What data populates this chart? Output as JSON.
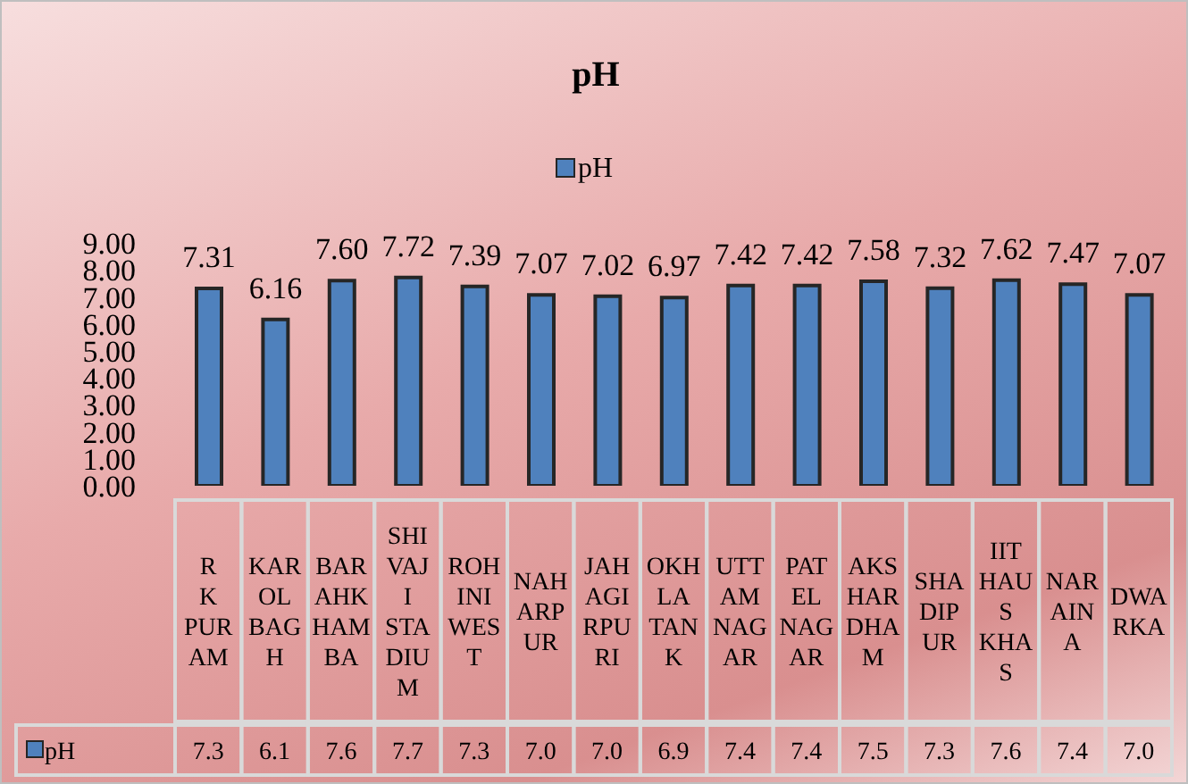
{
  "chart_data": {
    "type": "bar",
    "title": "pH",
    "categories": [
      "R K PURAM",
      "KAROL BAGH",
      "BARAHKHAMBA",
      "SHIVAJI STADIUM",
      "ROHINI WEST",
      "NAHARPUR",
      "JAHAGIRPURI",
      "OKHLA TANK",
      "UTTAM NAGAR",
      "PATEL NAGAR",
      "AKSHARDHAM",
      "SHADIPUR",
      "IIT HAUS KHAS",
      "NARAINA",
      "DWARKA"
    ],
    "series": [
      {
        "name": "pH",
        "color": "#4f81bd",
        "values": [
          7.31,
          6.16,
          7.6,
          7.72,
          7.39,
          7.07,
          7.02,
          6.97,
          7.42,
          7.42,
          7.58,
          7.32,
          7.62,
          7.47,
          7.07
        ],
        "value_labels": [
          "7.31",
          "6.16",
          "7.60",
          "7.72",
          "7.39",
          "7.07",
          "7.02",
          "6.97",
          "7.42",
          "7.42",
          "7.58",
          "7.32",
          "7.62",
          "7.47",
          "7.07"
        ]
      }
    ],
    "ylim": [
      0,
      9
    ],
    "yticks": [
      {
        "value": 0,
        "label": "0.00"
      },
      {
        "value": 1,
        "label": "1.00"
      },
      {
        "value": 2,
        "label": "2.00"
      },
      {
        "value": 3,
        "label": "3.00"
      },
      {
        "value": 4,
        "label": "4.00"
      },
      {
        "value": 5,
        "label": "5.00"
      },
      {
        "value": 6,
        "label": "6.00"
      },
      {
        "value": 7,
        "label": "7.00"
      },
      {
        "value": 8,
        "label": "8.00"
      },
      {
        "value": 9,
        "label": "9.00"
      }
    ],
    "grid": false,
    "legend": "top",
    "annotations": [
      "7.3",
      "6.1",
      "7.6",
      "7.7",
      "7.3",
      "7.0",
      "7.0",
      "6.9",
      "7.4",
      "7.4",
      "7.5",
      "7.3",
      "7.6",
      "7.4",
      "7.0"
    ]
  }
}
